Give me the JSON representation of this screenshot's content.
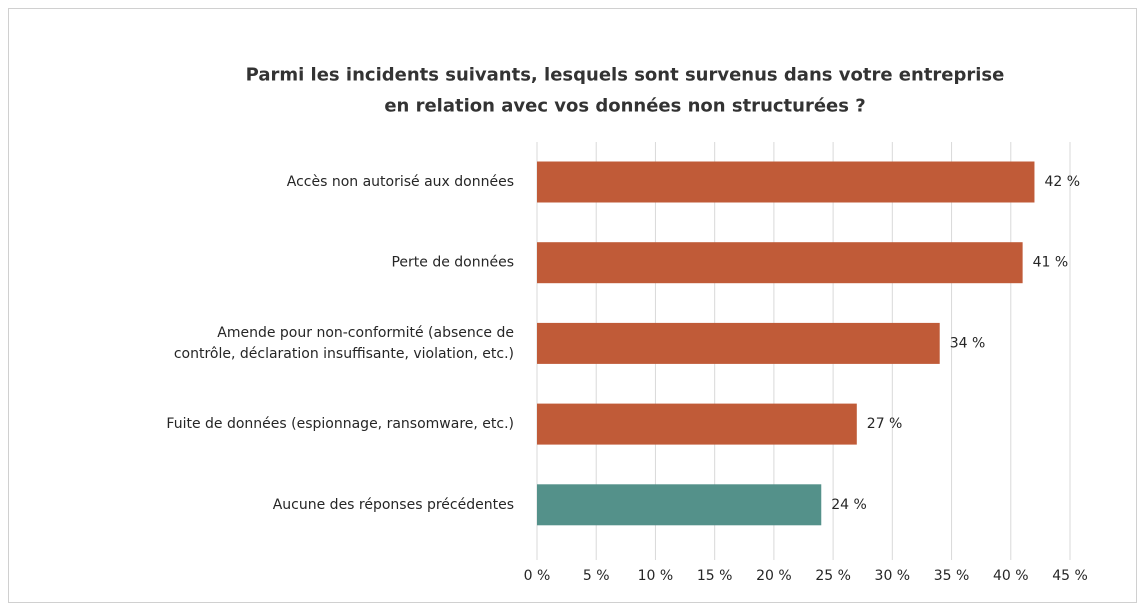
{
  "chart_data": {
    "type": "hbar",
    "title": "Parmi les incidents suivants, lesquels sont survenus dans votre entreprise\nen relation avec vos données non structurées ?",
    "categories": [
      "Accès non autorisé aux données",
      "Perte de données",
      "Amende pour non-conformité (absence de\ncontrôle, déclaration insuffisante, violation, etc.)",
      "Fuite de données (espionnage, ransomware, etc.)",
      "Aucune des réponses précédentes"
    ],
    "values": [
      42,
      41,
      34,
      27,
      24
    ],
    "value_labels": [
      "42 %",
      "41 %",
      "34 %",
      "27 %",
      "24 %"
    ],
    "colors": [
      "#c05b38",
      "#c05b38",
      "#c05b38",
      "#c05b38",
      "#54918a"
    ],
    "xlim": [
      0,
      45
    ],
    "xticks": [
      {
        "value": 0,
        "label": "0 %"
      },
      {
        "value": 5,
        "label": "5 %"
      },
      {
        "value": 10,
        "label": "10 %"
      },
      {
        "value": 15,
        "label": "15 %"
      },
      {
        "value": 20,
        "label": "20 %"
      },
      {
        "value": 25,
        "label": "25 %"
      },
      {
        "value": 30,
        "label": "30 %"
      },
      {
        "value": 35,
        "label": "35 %"
      },
      {
        "value": 40,
        "label": "40 %"
      },
      {
        "value": 45,
        "label": "45 %"
      }
    ],
    "grid": true
  }
}
